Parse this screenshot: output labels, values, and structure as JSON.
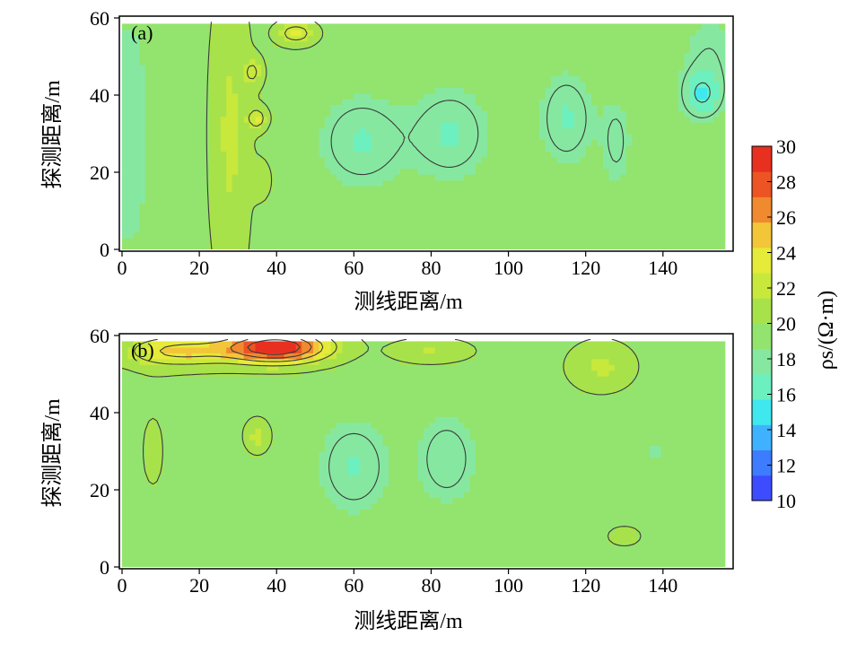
{
  "colors": {
    "scale": [
      "#3d4cff",
      "#3d7bff",
      "#3fb2ff",
      "#3fe8ef",
      "#6cf0c0",
      "#86e8a0",
      "#92e46e",
      "#a8e24a",
      "#c8e83c",
      "#e6ea38",
      "#f2c638",
      "#f08a2e",
      "#ec5424",
      "#e83020"
    ],
    "contour": "#3a3a3a",
    "frame": "#000000"
  },
  "chart_data": [
    {
      "type": "heatmap",
      "panel_label": "(a)",
      "xlabel": "测线距离/m",
      "ylabel": "探测距离/m",
      "x_ticks": [
        "0",
        "20",
        "40",
        "60",
        "80",
        "100",
        "120",
        "140"
      ],
      "y_ticks": [
        "0",
        "20",
        "40",
        "60"
      ],
      "xlim": [
        0,
        157
      ],
      "ylim": [
        0,
        60
      ],
      "data_x_extent": [
        0,
        156
      ],
      "data_y_extent": [
        0,
        58.5
      ],
      "base_value": 19.5,
      "features": [
        {
          "x": 2,
          "y": 30,
          "sx": 6,
          "sy": 40,
          "value": -1.5
        },
        {
          "x": 28,
          "y": 30,
          "sx": 5,
          "sy": 40,
          "value": 2.2
        },
        {
          "x": 45,
          "y": 56,
          "sx": 5,
          "sy": 3,
          "value": 3.5
        },
        {
          "x": 35,
          "y": 34,
          "sx": 2.5,
          "sy": 3,
          "value": 3.5
        },
        {
          "x": 34,
          "y": 46,
          "sx": 2.5,
          "sy": 4,
          "value": 2.5
        },
        {
          "x": 36,
          "y": 18,
          "sx": 2.5,
          "sy": 5,
          "value": 1.5
        },
        {
          "x": 62,
          "y": 28,
          "sx": 11,
          "sy": 12,
          "value": -2.5
        },
        {
          "x": 85,
          "y": 30,
          "sx": 10,
          "sy": 12,
          "value": -2.5
        },
        {
          "x": 115,
          "y": 34,
          "sx": 7,
          "sy": 12,
          "value": -2.5
        },
        {
          "x": 128,
          "y": 28,
          "sx": 4,
          "sy": 12,
          "value": -1.8
        },
        {
          "x": 150,
          "y": 40,
          "sx": 5,
          "sy": 6,
          "value": -3.3
        },
        {
          "x": 152,
          "y": 50,
          "sx": 8,
          "sy": 12,
          "value": -1.5
        }
      ]
    },
    {
      "type": "heatmap",
      "panel_label": "(b)",
      "xlabel": "测线距离/m",
      "ylabel": "探测距离/m",
      "x_ticks": [
        "0",
        "20",
        "40",
        "60",
        "80",
        "100",
        "120",
        "140"
      ],
      "y_ticks": [
        "0",
        "20",
        "40",
        "60"
      ],
      "xlim": [
        0,
        157
      ],
      "ylim": [
        0,
        60
      ],
      "data_x_extent": [
        0,
        156
      ],
      "data_y_extent": [
        0,
        58.5
      ],
      "base_value": 19.5,
      "features": [
        {
          "x": 40,
          "y": 57,
          "sx": 13,
          "sy": 4,
          "value": 10.5
        },
        {
          "x": 15,
          "y": 56,
          "sx": 14,
          "sy": 4,
          "value": 5
        },
        {
          "x": 80,
          "y": 56,
          "sx": 10,
          "sy": 3,
          "value": 2
        },
        {
          "x": 35,
          "y": 34,
          "sx": 3,
          "sy": 4,
          "value": 2.5
        },
        {
          "x": 60,
          "y": 26,
          "sx": 9,
          "sy": 12,
          "value": -2.5
        },
        {
          "x": 84,
          "y": 28,
          "sx": 8,
          "sy": 12,
          "value": -2.2
        },
        {
          "x": 124,
          "y": 52,
          "sx": 8,
          "sy": 6,
          "value": 2.2
        },
        {
          "x": 138,
          "y": 30,
          "sx": 3,
          "sy": 2,
          "value": -1.5
        },
        {
          "x": 130,
          "y": 8,
          "sx": 10,
          "sy": 6,
          "value": 0.6
        },
        {
          "x": 8,
          "y": 30,
          "sx": 6,
          "sy": 20,
          "value": 0.6
        }
      ]
    }
  ],
  "colorbar": {
    "label": "ρs/(Ω·m)",
    "min": 10,
    "max": 30,
    "ticks": [
      "10",
      "12",
      "14",
      "16",
      "18",
      "20",
      "22",
      "24",
      "26",
      "28",
      "30"
    ]
  }
}
